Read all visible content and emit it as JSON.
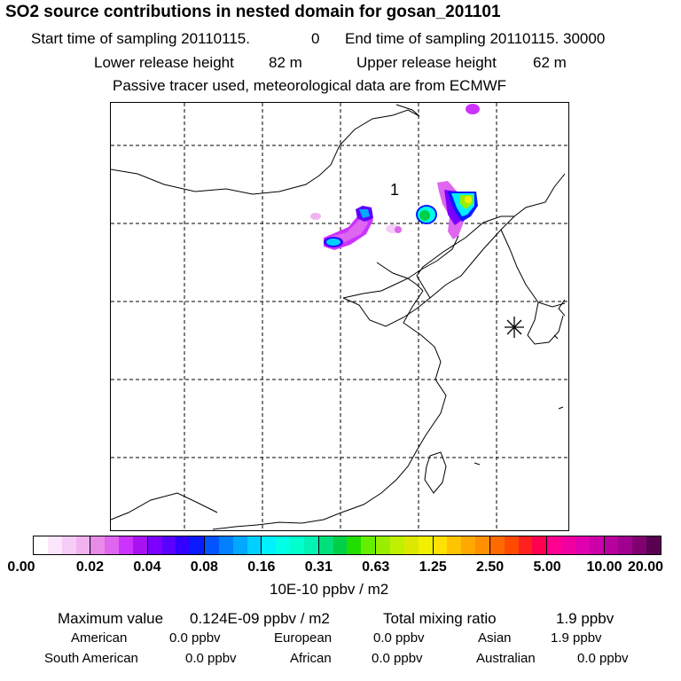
{
  "header": {
    "title": "SO2 source contributions in nested domain for gosan_201101",
    "start_label": "Start time of sampling 20110115.",
    "start_value": "0",
    "end_label": "End time of sampling 20110115. 30000",
    "lower_label": "Lower release height",
    "lower_value": "82 m",
    "upper_label": "Upper release height",
    "upper_value": "62 m",
    "note": "Passive tracer used, meteorological data are from ECMWF"
  },
  "map": {
    "label": "1",
    "marker": "asterisk-site-marker"
  },
  "colorbar": {
    "ticks": [
      "0.00",
      "0.02",
      "0.04",
      "0.08",
      "0.16",
      "0.31",
      "0.63",
      "1.25",
      "2.50",
      "5.00",
      "10.00",
      "20.00"
    ],
    "units": "10E-10 ppbv / m2",
    "colors": [
      [
        "#ffffff",
        "#fbe6fb",
        "#f5ccf5",
        "#f0b3f0"
      ],
      [
        "#e88ae8",
        "#df66ef",
        "#cc33ff",
        "#a811f0"
      ],
      [
        "#7b00ff",
        "#5a00ff",
        "#3300ff",
        "#0a1bff"
      ],
      [
        "#0055ff",
        "#0080ff",
        "#00a8ff",
        "#00d0ff"
      ],
      [
        "#00f0ff",
        "#00ffe6",
        "#00ffcc",
        "#00f2b5"
      ],
      [
        "#00e07a",
        "#00d048",
        "#22dd00",
        "#66ee00"
      ],
      [
        "#99ee00",
        "#c0f000",
        "#dde800",
        "#f2f000"
      ],
      [
        "#ffe000",
        "#ffc400",
        "#ffa800",
        "#ff9000"
      ],
      [
        "#ff6a00",
        "#ff4a00",
        "#ff2020",
        "#ff0050"
      ],
      [
        "#ff0090",
        "#f000a0",
        "#e000b0",
        "#cc00a8"
      ],
      [
        "#b8009c",
        "#a00090",
        "#800070",
        "#5a0050"
      ]
    ]
  },
  "stats": {
    "max_label": "Maximum value",
    "max_value": "0.124E-09 ppbv / m2",
    "total_label": "Total mixing ratio",
    "total_value": "1.9 ppbv",
    "regions": [
      {
        "name": "American",
        "value": "0.0 ppbv"
      },
      {
        "name": "European",
        "value": "0.0 ppbv"
      },
      {
        "name": "Asian",
        "value": "1.9 ppbv"
      },
      {
        "name": "South American",
        "value": "0.0 ppbv"
      },
      {
        "name": "African",
        "value": "0.0 ppbv"
      },
      {
        "name": "Australian",
        "value": "0.0 ppbv"
      }
    ]
  }
}
